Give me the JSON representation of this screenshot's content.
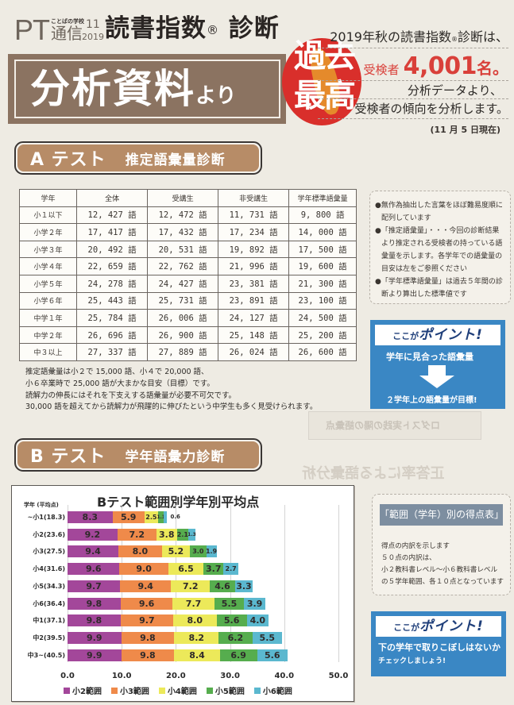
{
  "header": {
    "logo_pt": "PT",
    "logo_small": "ことばの学校",
    "logo_tsushin": "通信",
    "logo_issue": "11",
    "logo_year": "2019",
    "title": "読書指数",
    "title_reg": "®",
    "title_suffix": " 診断",
    "banner_main": "分析資料",
    "banner_small": "より",
    "badge_line1": "過去",
    "badge_line2": "最高"
  },
  "summary": {
    "line1_a": "2019年秋の読書指数",
    "line1_reg": "®",
    "line1_b": "診断は、",
    "examinees_label": "受検者",
    "examinees_count": "4,001",
    "examinees_suffix": "名。",
    "line3": "分析データより、",
    "line4": "受検者の傾向を分析します。",
    "as_of": "(11 月 5 日現在)"
  },
  "section_a": {
    "letter": "A テスト",
    "title": "推定語彙量診断",
    "table": {
      "headers": [
        "学年",
        "全体",
        "受講生",
        "非受講生",
        "学年標準語彙量"
      ],
      "rows": [
        [
          "小１以下",
          "12, 427 語",
          "12, 472 語",
          "11, 731 語",
          "9, 800 語"
        ],
        [
          "小学２年",
          "17, 417 語",
          "17, 432 語",
          "17, 234 語",
          "14, 000 語"
        ],
        [
          "小学３年",
          "20, 492 語",
          "20, 531 語",
          "19, 892 語",
          "17, 500 語"
        ],
        [
          "小学４年",
          "22, 659 語",
          "22, 762 語",
          "21, 996 語",
          "19, 600 語"
        ],
        [
          "小学５年",
          "24, 278 語",
          "24, 427 語",
          "23, 381 語",
          "21, 300 語"
        ],
        [
          "小学６年",
          "25, 443 語",
          "25, 731 語",
          "23, 891 語",
          "23, 100 語"
        ],
        [
          "中学１年",
          "25, 784 語",
          "26, 006 語",
          "24, 127 語",
          "24, 500 語"
        ],
        [
          "中学２年",
          "26, 696 語",
          "26, 900 語",
          "25, 148 語",
          "25, 200 語"
        ],
        [
          "中３以上",
          "27, 337 語",
          "27, 889 語",
          "26, 024 語",
          "26, 600 語"
        ]
      ]
    },
    "notes": [
      "推定語彙量は小２で 15,000 語、小４で 20,000 語、",
      "小６卒業時で 25,000 語が大まかな目安（目標）です。",
      "読解力の伸長にはそれを下支えする語彙量が必要不可欠です。",
      "30,000 語を超えてから読解力が飛躍的に伸びたという中学生も多く見受けられます。"
    ],
    "side_notes": [
      "●無作為抽出した言葉をほぼ難易度順に配列しています",
      "●「推定語彙量」・・・今回の診断結果より推定される受検者の持っている語彙量を示します。各学年での語彙量の目安は左をご参照ください",
      "●「学年標準語彙量」は過去５年間の診断より算出した標準値です"
    ],
    "point": {
      "head_small": "ここが",
      "head_big": "ポイント!",
      "line1": "学年に見合った語彙量",
      "line2": "２学年上の語彙量が目標!"
    }
  },
  "section_b": {
    "letter": "B テスト",
    "title": "学年語彙力診断",
    "side_box": {
      "heading": "「範囲（学年）別の得点表」",
      "lines": [
        "得点の内訳を示します",
        "５０点の内訳は、",
        "小２教科書レベル～小６教科書レベル",
        "の５学年範囲、各１０点となっています"
      ]
    },
    "point": {
      "head_small": "ここが",
      "head_big": "ポイント!",
      "line1": "下の学年で取りこぼしはないか",
      "line2": "チェックしましょう!"
    }
  },
  "ghost": {
    "box_text": "ロダスト実践の陽の語彙点",
    "title_text": "正答率による語彙分析"
  },
  "chart_data": {
    "type": "bar",
    "orientation": "horizontal-stacked",
    "title": "Bテスト範囲別学年別平均点",
    "ylabel": "学年 (平均点)",
    "xlabel": "",
    "xlim": [
      0,
      50
    ],
    "xticks": [
      "0.0",
      "10.0",
      "20.0",
      "30.0",
      "40.0",
      "50.0"
    ],
    "grid": true,
    "legend_position": "bottom",
    "categories": [
      "~小1(18.3)",
      "小2(23.6)",
      "小3(27.5)",
      "小4(31.6)",
      "小5(34.3)",
      "小6(36.4)",
      "中1(37.1)",
      "中2(39.5)",
      "中3~(40.5)"
    ],
    "series": [
      {
        "name": "小2範囲",
        "color": "#a3479a",
        "values": [
          8.3,
          9.2,
          9.4,
          9.6,
          9.7,
          9.8,
          9.8,
          9.9,
          9.9
        ]
      },
      {
        "name": "小3範囲",
        "color": "#ef8a4a",
        "values": [
          5.9,
          7.2,
          8.0,
          9.0,
          9.4,
          9.6,
          9.7,
          9.8,
          9.8
        ]
      },
      {
        "name": "小4範囲",
        "color": "#ece95a",
        "values": [
          2.5,
          3.8,
          5.2,
          6.5,
          7.2,
          7.7,
          8.0,
          8.2,
          8.4
        ]
      },
      {
        "name": "小5範囲",
        "color": "#56ad4e",
        "values": [
          1.1,
          2.1,
          3.0,
          3.7,
          4.6,
          5.5,
          5.6,
          6.2,
          6.9
        ]
      },
      {
        "name": "小6範囲",
        "color": "#5bb8cf",
        "values": [
          0.6,
          1.3,
          1.9,
          2.7,
          3.3,
          3.9,
          4.0,
          5.5,
          5.6
        ]
      }
    ]
  }
}
